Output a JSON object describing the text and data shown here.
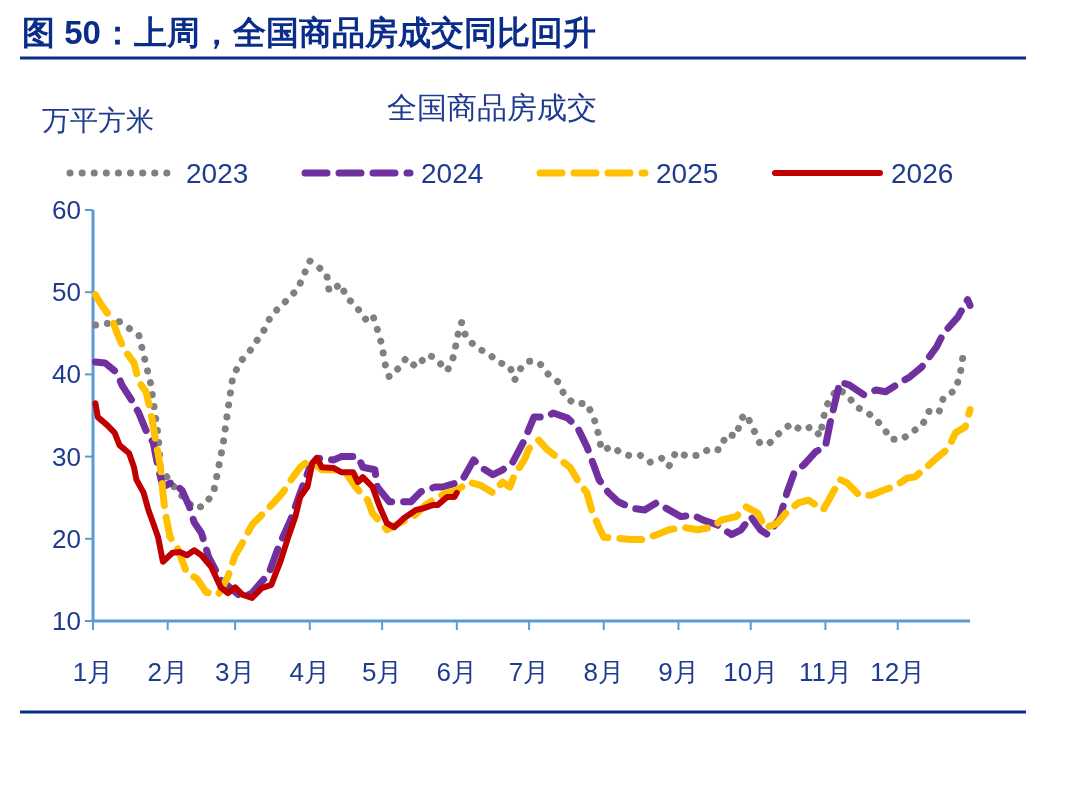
{
  "chart_data": {
    "type": "line",
    "title": "图 50：上周，全国商品房成交同比回升",
    "subtitle": "全国商品房成交",
    "ylabel": "万平方米",
    "xlim": [
      "--01-01",
      "--12-31"
    ],
    "xticks": [
      {
        "value": "--01-01",
        "label": "1月"
      },
      {
        "value": "--02-01",
        "label": "2月"
      },
      {
        "value": "--03-01",
        "label": "3月"
      },
      {
        "value": "--04-01",
        "label": "4月"
      },
      {
        "value": "--05-01",
        "label": "5月"
      },
      {
        "value": "--06-01",
        "label": "6月"
      },
      {
        "value": "--07-01",
        "label": "7月"
      },
      {
        "value": "--08-01",
        "label": "8月"
      },
      {
        "value": "--09-01",
        "label": "9月"
      },
      {
        "value": "--10-01",
        "label": "10月"
      },
      {
        "value": "--11-01",
        "label": "11月"
      },
      {
        "value": "--12-01",
        "label": "12月"
      }
    ],
    "ylim": [
      10,
      60
    ],
    "yticks": [
      10,
      20,
      30,
      40,
      50,
      60
    ],
    "legend": "top",
    "grid": false,
    "series": [
      {
        "name": "2023",
        "color": "#808080",
        "line_style": "dotted",
        "x": [
          "--01-02",
          "--01-12",
          "--01-20",
          "--01-25",
          "--01-28",
          "--01-29",
          "--02-05",
          "--02-12",
          "--02-16",
          "--02-20",
          "--02-24",
          "--02-26",
          "--02-28",
          "--03-03",
          "--03-07",
          "--03-13",
          "--03-16",
          "--03-20",
          "--03-27",
          "--04-01",
          "--04-04",
          "--04-08",
          "--04-09",
          "--04-14",
          "--04-16",
          "--04-20",
          "--04-24",
          "--04-27",
          "--04-29",
          "--05-01",
          "--05-02",
          "--05-04",
          "--05-08",
          "--05-11",
          "--05-15",
          "--05-20",
          "--05-23",
          "--05-28",
          "--05-31",
          "--06-01",
          "--06-03",
          "--06-05",
          "--06-10",
          "--06-14",
          "--06-18",
          "--06-23",
          "--06-25",
          "--06-28",
          "--07-01",
          "--07-05",
          "--07-09",
          "--07-13",
          "--07-16",
          "--07-20",
          "--07-25",
          "--07-28",
          "--07-30",
          "--07-31",
          "--08-05",
          "--08-08",
          "--08-12",
          "--08-16",
          "--08-20",
          "--08-25",
          "--08-28",
          "--08-31",
          "--09-05",
          "--09-10",
          "--09-14",
          "--09-18",
          "--09-21",
          "--09-25",
          "--09-27",
          "--09-29",
          "--10-02",
          "--10-05",
          "--10-09",
          "--10-14",
          "--10-18",
          "--10-22",
          "--10-26",
          "--10-30",
          "--10-31",
          "--11-02",
          "--11-06",
          "--11-10",
          "--11-14",
          "--11-18",
          "--11-21",
          "--11-25",
          "--11-28",
          "--12-03",
          "--12-06",
          "--12-11",
          "--12-14",
          "--12-18",
          "--12-20",
          "--12-25",
          "--12-27",
          "--12-28",
          "--12-30"
        ],
        "values": [
          46,
          46.4,
          44.8,
          38.8,
          32.6,
          28.6,
          25.8,
          23.7,
          24,
          25.6,
          31.5,
          35.7,
          39.6,
          41.5,
          42.8,
          45.4,
          47.2,
          48.3,
          50.4,
          53.8,
          53.2,
          52.2,
          50.1,
          51,
          49.4,
          48.4,
          46.7,
          47.3,
          45.5,
          43.5,
          41.5,
          39.7,
          40.8,
          42,
          40.9,
          42.4,
          42,
          40.4,
          42.4,
          44.4,
          46.3,
          44.4,
          43.1,
          42.6,
          41.5,
          41,
          39.3,
          41,
          41.6,
          41.5,
          40,
          39.1,
          37.3,
          36.4,
          36.5,
          34.6,
          32.5,
          30.8,
          31.2,
          30.4,
          30.1,
          30.2,
          29.3,
          29.8,
          28.8,
          30.6,
          30,
          30.2,
          31,
          30.8,
          32.7,
          32.5,
          34.6,
          35.2,
          33.4,
          31.5,
          31.7,
          33.2,
          34,
          33.2,
          33.6,
          32.5,
          34.6,
          36.5,
          38.3,
          37.5,
          36,
          35.5,
          34.7,
          33.6,
          32.1,
          32.1,
          32.9,
          33.7,
          35.5,
          35.3,
          37.2,
          38.1,
          40.2,
          42.1,
          42.2
        ]
      },
      {
        "name": "2024",
        "color": "#7030a0",
        "line_style": "dashed",
        "x": [
          "--01-02",
          "--01-06",
          "--01-11",
          "--01-13",
          "--01-17",
          "--01-20",
          "--01-23",
          "--01-26",
          "--01-28",
          "--01-30",
          "--02-03",
          "--02-07",
          "--02-10",
          "--02-12",
          "--02-15",
          "--02-18",
          "--02-23",
          "--03-04",
          "--03-08",
          "--03-15",
          "--03-19",
          "--03-24",
          "--03-28",
          "--04-01",
          "--04-04",
          "--04-11",
          "--04-14",
          "--04-21",
          "--04-23",
          "--04-28",
          "--04-29",
          "--05-04",
          "--05-08",
          "--05-13",
          "--05-17",
          "--05-23",
          "--05-26",
          "--06-01",
          "--06-04",
          "--06-08",
          "--06-11",
          "--06-16",
          "--06-20",
          "--06-24",
          "--06-29",
          "--07-03",
          "--07-08",
          "--07-11",
          "--07-17",
          "--07-21",
          "--07-25",
          "--07-30",
          "--08-03",
          "--08-07",
          "--08-13",
          "--08-18",
          "--08-23",
          "--08-27",
          "--09-02",
          "--09-07",
          "--09-11",
          "--09-17",
          "--09-23",
          "--09-27",
          "--10-01",
          "--10-05",
          "--10-08",
          "--10-13",
          "--10-16",
          "--10-19",
          "--10-23",
          "--10-28",
          "--11-01",
          "--11-03",
          "--11-07",
          "--11-11",
          "--11-17",
          "--11-22",
          "--11-26",
          "--12-02",
          "--12-06",
          "--12-11",
          "--12-17",
          "--12-20",
          "--12-26",
          "--12-30",
          "--12-31"
        ],
        "values": [
          41.5,
          41.4,
          40.2,
          38.7,
          36.9,
          35.3,
          33.2,
          31.7,
          28.7,
          26.3,
          26.9,
          25.9,
          23.9,
          22,
          20.7,
          17.8,
          15,
          12.8,
          13.4,
          15.8,
          19,
          22.3,
          25.6,
          28.7,
          29.8,
          29.6,
          30,
          30,
          28.7,
          28.4,
          26.3,
          24.5,
          24.5,
          24.5,
          25.7,
          26.3,
          26.3,
          26.8,
          27.5,
          29.6,
          28.7,
          27.8,
          28.4,
          29.2,
          32,
          34.8,
          34.8,
          35.3,
          34.7,
          33.6,
          31.2,
          27.2,
          25.6,
          24.5,
          23.7,
          23.5,
          24.4,
          23.7,
          22.7,
          22.9,
          22.3,
          21.7,
          20.5,
          21.1,
          22.7,
          21.1,
          20.5,
          22.5,
          25.6,
          28,
          29,
          30.6,
          31.2,
          34.2,
          39.1,
          38.7,
          37.5,
          38.1,
          37.9,
          39,
          39.7,
          40.9,
          43.3,
          45,
          47,
          49.1,
          48.4
        ]
      },
      {
        "name": "2025",
        "color": "#ffc000",
        "line_style": "dashed",
        "x": [
          "--01-02",
          "--01-04",
          "--01-09",
          "--01-11",
          "--01-14",
          "--01-18",
          "--01-20",
          "--01-23",
          "--01-25",
          "--01-27",
          "--01-29",
          "--01-30",
          "--01-31",
          "--02-02",
          "--02-05",
          "--02-09",
          "--02-13",
          "--02-17",
          "--02-22",
          "--02-26",
          "--03-01",
          "--03-04",
          "--03-08",
          "--03-12",
          "--03-17",
          "--03-21",
          "--03-25",
          "--03-28",
          "--04-01",
          "--04-06",
          "--04-11",
          "--04-16",
          "--04-20",
          "--04-25",
          "--04-27",
          "--05-03",
          "--05-08",
          "--05-14",
          "--05-19",
          "--05-24",
          "--05-28",
          "--06-01",
          "--06-06",
          "--06-11",
          "--06-16",
          "--06-20",
          "--06-23",
          "--06-25",
          "--06-29",
          "--07-01",
          "--07-05",
          "--07-08",
          "--07-14",
          "--07-18",
          "--07-21",
          "--07-25",
          "--07-27",
          "--07-30",
          "--08-01",
          "--08-06",
          "--08-12",
          "--08-17",
          "--08-23",
          "--08-28",
          "--09-03",
          "--09-09",
          "--09-15",
          "--09-19",
          "--09-25",
          "--09-29",
          "--10-04",
          "--10-07",
          "--10-12",
          "--10-16",
          "--10-21",
          "--10-25",
          "--10-31",
          "--11-02",
          "--11-07",
          "--11-10",
          "--11-15",
          "--11-20",
          "--11-25",
          "--11-30",
          "--12-05",
          "--12-08",
          "--12-13",
          "--12-17",
          "--12-22",
          "--12-25",
          "--12-29",
          "--12-31"
        ],
        "values": [
          49.7,
          48.7,
          46.6,
          45,
          43,
          41.4,
          39.1,
          37.9,
          35.4,
          32,
          28.7,
          25.6,
          23.1,
          20.2,
          18.9,
          15.8,
          15.2,
          13.5,
          13.2,
          15.4,
          18,
          19.5,
          21.7,
          22.9,
          24.4,
          25.7,
          27.5,
          28.7,
          29.6,
          28.4,
          28.4,
          28,
          26.3,
          24.7,
          23.1,
          21.1,
          21.9,
          22.7,
          24.1,
          25.1,
          25.6,
          25.9,
          26.9,
          26.5,
          25.6,
          26.9,
          26.3,
          27.8,
          29.6,
          31,
          32,
          31,
          29.6,
          28.7,
          27.2,
          25.6,
          23.5,
          21.4,
          20.2,
          20.1,
          19.9,
          19.9,
          20.5,
          21.1,
          21.4,
          21.1,
          21.4,
          22.3,
          22.7,
          23.9,
          23.1,
          21.3,
          21.9,
          23.3,
          24.4,
          24.7,
          23.5,
          24.5,
          27.2,
          26.8,
          25.3,
          25.3,
          25.9,
          26.4,
          27.4,
          27.5,
          28.7,
          29.8,
          31,
          32.9,
          33.6,
          35.7
        ]
      },
      {
        "name": "2026",
        "color": "#c00000",
        "line_style": "solid",
        "x": [
          "--01-02",
          "--01-03",
          "--01-07",
          "--01-10",
          "--01-12",
          "--01-16",
          "--01-18",
          "--01-19",
          "--01-22",
          "--01-24",
          "--01-26",
          "--01-28",
          "--01-30",
          "--02-03",
          "--02-06",
          "--02-09",
          "--02-12",
          "--02-15",
          "--02-19",
          "--02-23",
          "--02-26",
          "--03-01",
          "--03-04",
          "--03-08",
          "--03-12",
          "--03-16",
          "--03-20",
          "--03-23",
          "--03-26",
          "--03-28",
          "--03-31",
          "--04-02",
          "--04-04",
          "--04-06",
          "--04-11",
          "--04-14",
          "--04-19",
          "--04-21",
          "--04-23",
          "--04-27",
          "--04-30",
          "--05-03",
          "--05-06",
          "--05-10",
          "--05-15",
          "--05-18",
          "--05-22",
          "--05-24",
          "--05-28",
          "--05-31",
          "--06-01"
        ],
        "values": [
          36.5,
          34.8,
          33.8,
          32.9,
          31.4,
          30.4,
          28.7,
          27.2,
          25.6,
          23.5,
          21.9,
          20.2,
          17.2,
          18.3,
          18.4,
          18,
          18.6,
          18,
          16.6,
          14.1,
          13.4,
          14.1,
          13.2,
          12.8,
          14,
          14.4,
          17.4,
          20.2,
          22.7,
          25.1,
          26.3,
          29.2,
          29.8,
          28.7,
          28.6,
          28.1,
          28.1,
          26.9,
          27.5,
          26.3,
          23.9,
          21.9,
          21.4,
          22.5,
          23.5,
          23.7,
          24.1,
          24.1,
          25.1,
          25.1,
          25.6
        ]
      }
    ]
  }
}
